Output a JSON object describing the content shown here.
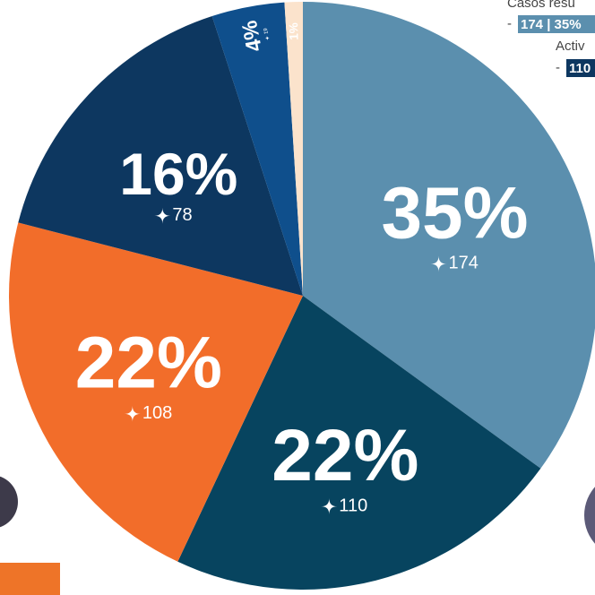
{
  "chart_data": {
    "type": "pie",
    "categories": [
      null,
      null,
      null,
      null,
      null,
      null
    ],
    "values": [
      35,
      22,
      22,
      16,
      4,
      1
    ],
    "value_labels": [
      "35%",
      "22%",
      "22%",
      "16%",
      "4%",
      "1%"
    ],
    "counts": [
      174,
      110,
      108,
      78,
      19,
      null
    ],
    "colors": [
      "#5b8fae",
      "#07445f",
      "#f26d2a",
      "#0d3760",
      "#0f4f8c",
      "#fbe3cc"
    ],
    "annotations": [
      "Casos resu",
      "174 | 35%",
      "Activ",
      "110"
    ]
  }
}
